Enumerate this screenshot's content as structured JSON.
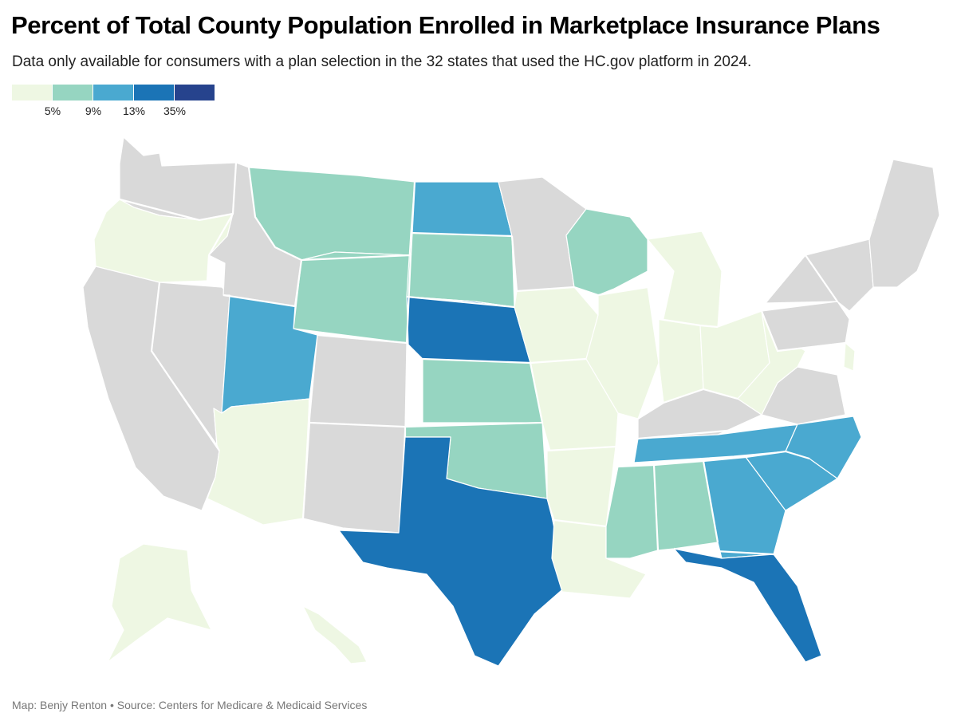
{
  "header": {
    "title": "Percent of Total County Population Enrolled in Marketplace Insurance Plans",
    "subtitle": "Data only available for consumers with a plan selection in the 32 states that used the HC.gov platform in 2024."
  },
  "legend": {
    "colors": [
      "#eef7e3",
      "#96d5c1",
      "#4aa9d0",
      "#1b74b6",
      "#26438d"
    ],
    "ticks": [
      "5%",
      "9%",
      "13%",
      "35%"
    ]
  },
  "map": {
    "no_data_color": "#d9d9d9",
    "border_color": "#ffffff",
    "regions": [
      {
        "name": "Washington",
        "level": null
      },
      {
        "name": "Oregon",
        "level": 0
      },
      {
        "name": "California",
        "level": null
      },
      {
        "name": "Nevada",
        "level": null
      },
      {
        "name": "Idaho",
        "level": null
      },
      {
        "name": "Montana",
        "level": 1
      },
      {
        "name": "Wyoming",
        "level": 1
      },
      {
        "name": "Utah",
        "level": 2
      },
      {
        "name": "Arizona",
        "level": 0
      },
      {
        "name": "Colorado",
        "level": null
      },
      {
        "name": "New Mexico",
        "level": null
      },
      {
        "name": "North Dakota",
        "level": 2
      },
      {
        "name": "South Dakota",
        "level": 1
      },
      {
        "name": "Nebraska",
        "level": 3
      },
      {
        "name": "Kansas",
        "level": 1
      },
      {
        "name": "Oklahoma",
        "level": 1
      },
      {
        "name": "Texas",
        "level": 3
      },
      {
        "name": "Minnesota",
        "level": null
      },
      {
        "name": "Iowa",
        "level": 0
      },
      {
        "name": "Missouri",
        "level": 0
      },
      {
        "name": "Arkansas",
        "level": 0
      },
      {
        "name": "Louisiana",
        "level": 0
      },
      {
        "name": "Wisconsin",
        "level": 1
      },
      {
        "name": "Illinois",
        "level": 0
      },
      {
        "name": "Michigan",
        "level": 0
      },
      {
        "name": "Indiana",
        "level": 0
      },
      {
        "name": "Ohio",
        "level": 0
      },
      {
        "name": "Kentucky",
        "level": null
      },
      {
        "name": "Tennessee",
        "level": 2
      },
      {
        "name": "Mississippi",
        "level": 1
      },
      {
        "name": "Alabama",
        "level": 1
      },
      {
        "name": "Georgia",
        "level": 2
      },
      {
        "name": "Florida",
        "level": 3
      },
      {
        "name": "South Carolina",
        "level": 2
      },
      {
        "name": "North Carolina",
        "level": 2
      },
      {
        "name": "Virginia",
        "level": null
      },
      {
        "name": "West Virginia",
        "level": 0
      },
      {
        "name": "Pennsylvania",
        "level": null
      },
      {
        "name": "New York",
        "level": null
      },
      {
        "name": "New Hampshire",
        "level": 0
      },
      {
        "name": "New England",
        "level": null
      },
      {
        "name": "Delaware",
        "level": 0
      },
      {
        "name": "Alaska",
        "level": 0
      },
      {
        "name": "Hawaii",
        "level": 0
      }
    ]
  },
  "footer": {
    "credit": "Map: Benjy Renton • Source: Centers for Medicare & Medicaid Services"
  }
}
